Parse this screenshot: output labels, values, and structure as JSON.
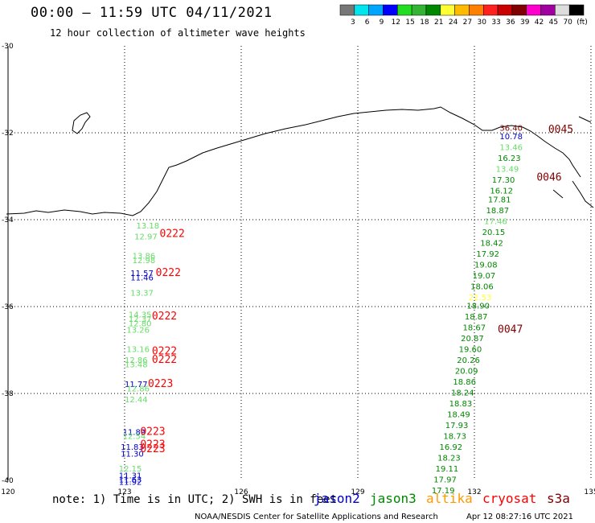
{
  "title": "00:00 – 11:59 UTC 04/11/2021",
  "subtitle": "12 hour collection of altimeter wave heights",
  "colorbar": {
    "colors": [
      "#777777",
      "#00e5ee",
      "#00a5ff",
      "#0000ff",
      "#22dd22",
      "#33b433",
      "#008800",
      "#ffff33",
      "#ffbb00",
      "#ff8000",
      "#ff2020",
      "#c80000",
      "#800000",
      "#ff00cc",
      "#a000a0",
      "#dddddd",
      "#000000"
    ],
    "labels": [
      "3",
      "6",
      "9",
      "12",
      "15",
      "18",
      "21",
      "24",
      "27",
      "30",
      "33",
      "36",
      "39",
      "42",
      "45",
      "70",
      "(ft)"
    ]
  },
  "axes": {
    "lon_ticks": [
      "120",
      "123",
      "126",
      "129",
      "132",
      "135"
    ],
    "lat_ticks": [
      "-30",
      "-32",
      "-34",
      "-36",
      "-38",
      "-40"
    ]
  },
  "note": "note: 1) Time is in UTC; 2) SWH is in feet",
  "legend": [
    {
      "label": "jason2",
      "color": "#0000cc"
    },
    {
      "label": "jason3",
      "color": "#008800"
    },
    {
      "label": "altika",
      "color": "#ff9900"
    },
    {
      "label": "cryosat",
      "color": "#ff0000"
    },
    {
      "label": "s3a",
      "color": "#800000"
    }
  ],
  "footer_left": "NOAA/NESDIS Center for Satellite Applications and Research",
  "footer_right": "Apr 12 08:27:16 UTC 2021",
  "track_times": [
    {
      "text": "0222",
      "color": "#ff0000",
      "lon": 123.9,
      "lat": -34.4
    },
    {
      "text": "0222",
      "color": "#ff0000",
      "lon": 123.8,
      "lat": -35.3
    },
    {
      "text": "0222",
      "color": "#ff0000",
      "lon": 123.7,
      "lat": -36.3
    },
    {
      "text": "0222",
      "color": "#ff0000",
      "lon": 123.7,
      "lat": -37.1
    },
    {
      "text": "0222",
      "color": "#ff0000",
      "lon": 123.7,
      "lat": -37.3
    },
    {
      "text": "0223",
      "color": "#ff0000",
      "lon": 123.6,
      "lat": -37.85
    },
    {
      "text": "0223",
      "color": "#ff0000",
      "lon": 123.4,
      "lat": -38.95
    },
    {
      "text": "0223",
      "color": "#ff0000",
      "lon": 123.4,
      "lat": -39.25
    },
    {
      "text": "0223",
      "color": "#ff0000",
      "lon": 123.4,
      "lat": -39.35
    },
    {
      "text": "0045",
      "color": "#800000",
      "lon": 133.9,
      "lat": -32.0
    },
    {
      "text": "0046",
      "color": "#800000",
      "lon": 133.6,
      "lat": -33.1
    },
    {
      "text": "0047",
      "color": "#800000",
      "lon": 132.6,
      "lat": -36.6
    }
  ],
  "obs": [
    {
      "v": "36.40",
      "c": "#800000",
      "lon": 132.65,
      "lat": -31.95
    },
    {
      "v": "10.78",
      "c": "#0000cc",
      "lon": 132.65,
      "lat": -32.15
    },
    {
      "v": "13.46",
      "c": "#66dd66",
      "lon": 132.65,
      "lat": -32.4
    },
    {
      "v": "16.23",
      "c": "#008800",
      "lon": 132.6,
      "lat": -32.65
    },
    {
      "v": "13.49",
      "c": "#66dd66",
      "lon": 132.55,
      "lat": -32.9
    },
    {
      "v": "17.30",
      "c": "#008800",
      "lon": 132.45,
      "lat": -33.15
    },
    {
      "v": "16.12",
      "c": "#008800",
      "lon": 132.4,
      "lat": -33.4
    },
    {
      "v": "17.81",
      "c": "#008800",
      "lon": 132.35,
      "lat": -33.6
    },
    {
      "v": "18.87",
      "c": "#008800",
      "lon": 132.3,
      "lat": -33.85
    },
    {
      "v": "17.46",
      "c": "#66dd66",
      "lon": 132.25,
      "lat": -34.1
    },
    {
      "v": "20.15",
      "c": "#008800",
      "lon": 132.2,
      "lat": -34.35
    },
    {
      "v": "18.42",
      "c": "#008800",
      "lon": 132.15,
      "lat": -34.6
    },
    {
      "v": "17.92",
      "c": "#008800",
      "lon": 132.05,
      "lat": -34.85
    },
    {
      "v": "19.08",
      "c": "#008800",
      "lon": 132.0,
      "lat": -35.1
    },
    {
      "v": "19.07",
      "c": "#008800",
      "lon": 131.95,
      "lat": -35.35
    },
    {
      "v": "18.06",
      "c": "#008800",
      "lon": 131.9,
      "lat": -35.6
    },
    {
      "v": "22.53",
      "c": "#ffff33",
      "lon": 131.85,
      "lat": -35.85
    },
    {
      "v": "18.90",
      "c": "#008800",
      "lon": 131.8,
      "lat": -36.05
    },
    {
      "v": "18.87",
      "c": "#008800",
      "lon": 131.75,
      "lat": -36.3
    },
    {
      "v": "18.67",
      "c": "#008800",
      "lon": 131.7,
      "lat": -36.55
    },
    {
      "v": "20.87",
      "c": "#008800",
      "lon": 131.65,
      "lat": -36.8
    },
    {
      "v": "19.60",
      "c": "#008800",
      "lon": 131.6,
      "lat": -37.05
    },
    {
      "v": "20.26",
      "c": "#008800",
      "lon": 131.55,
      "lat": -37.3
    },
    {
      "v": "20.09",
      "c": "#008800",
      "lon": 131.5,
      "lat": -37.55
    },
    {
      "v": "18.86",
      "c": "#008800",
      "lon": 131.45,
      "lat": -37.8
    },
    {
      "v": "18.24",
      "c": "#008800",
      "lon": 131.4,
      "lat": -38.05
    },
    {
      "v": "18.83",
      "c": "#008800",
      "lon": 131.35,
      "lat": -38.3
    },
    {
      "v": "18.49",
      "c": "#008800",
      "lon": 131.3,
      "lat": -38.55
    },
    {
      "v": "17.93",
      "c": "#008800",
      "lon": 131.25,
      "lat": -38.8
    },
    {
      "v": "18.73",
      "c": "#008800",
      "lon": 131.2,
      "lat": -39.05
    },
    {
      "v": "16.92",
      "c": "#008800",
      "lon": 131.1,
      "lat": -39.3
    },
    {
      "v": "18.23",
      "c": "#008800",
      "lon": 131.05,
      "lat": -39.55
    },
    {
      "v": "19.11",
      "c": "#008800",
      "lon": 131.0,
      "lat": -39.8
    },
    {
      "v": "17.97",
      "c": "#008800",
      "lon": 130.95,
      "lat": -40.05
    },
    {
      "v": "17.19",
      "c": "#008800",
      "lon": 130.9,
      "lat": -40.3
    },
    {
      "v": "13.18",
      "c": "#66dd66",
      "lon": 123.3,
      "lat": -34.2
    },
    {
      "v": "12.97",
      "c": "#66dd66",
      "lon": 123.25,
      "lat": -34.45
    },
    {
      "v": "13.86",
      "c": "#66dd66",
      "lon": 123.2,
      "lat": -34.9
    },
    {
      "v": "12.98",
      "c": "#66dd66",
      "lon": 123.2,
      "lat": -35.0
    },
    {
      "v": "11.57",
      "c": "#0000cc",
      "lon": 123.15,
      "lat": -35.3
    },
    {
      "v": "11.46",
      "c": "#0000cc",
      "lon": 123.15,
      "lat": -35.4
    },
    {
      "v": "13.37",
      "c": "#66dd66",
      "lon": 123.15,
      "lat": -35.75
    },
    {
      "v": "14.35",
      "c": "#66dd66",
      "lon": 123.1,
      "lat": -36.25
    },
    {
      "v": "12.37",
      "c": "#66dd66",
      "lon": 123.1,
      "lat": -36.35
    },
    {
      "v": "12.80",
      "c": "#66dd66",
      "lon": 123.1,
      "lat": -36.45
    },
    {
      "v": "13.26",
      "c": "#66dd66",
      "lon": 123.05,
      "lat": -36.6
    },
    {
      "v": "13.16",
      "c": "#66dd66",
      "lon": 123.05,
      "lat": -37.05
    },
    {
      "v": "12.86",
      "c": "#66dd66",
      "lon": 123.0,
      "lat": -37.3
    },
    {
      "v": "13.48",
      "c": "#66dd66",
      "lon": 123.0,
      "lat": -37.4
    },
    {
      "v": "11.77",
      "c": "#0000cc",
      "lon": 123.0,
      "lat": -37.85
    },
    {
      "v": "12.86",
      "c": "#66dd66",
      "lon": 123.05,
      "lat": -37.95
    },
    {
      "v": "12.44",
      "c": "#66dd66",
      "lon": 123.0,
      "lat": -38.2
    },
    {
      "v": "11.89",
      "c": "#0000cc",
      "lon": 122.95,
      "lat": -38.95
    },
    {
      "v": "12.54",
      "c": "#66dd66",
      "lon": 122.95,
      "lat": -39.05
    },
    {
      "v": "11.83",
      "c": "#0000cc",
      "lon": 122.9,
      "lat": -39.3
    },
    {
      "v": "11.30",
      "c": "#0000cc",
      "lon": 122.9,
      "lat": -39.45
    },
    {
      "v": "12.15",
      "c": "#66dd66",
      "lon": 122.85,
      "lat": -39.8
    },
    {
      "v": "11.31",
      "c": "#0000cc",
      "lon": 122.85,
      "lat": -39.95
    },
    {
      "v": "11.63",
      "c": "#0000cc",
      "lon": 122.85,
      "lat": -40.05
    },
    {
      "v": "11.92",
      "c": "#0000cc",
      "lon": 122.85,
      "lat": -40.1
    }
  ]
}
